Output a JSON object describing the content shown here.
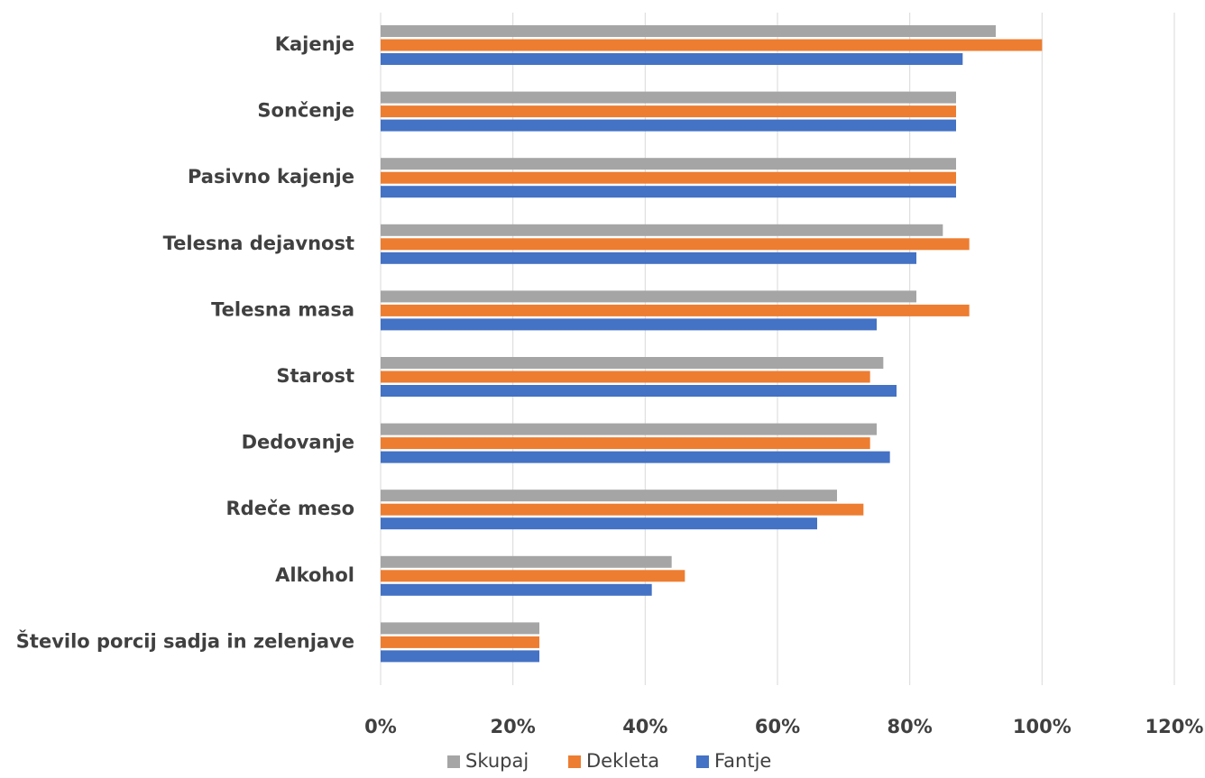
{
  "chart_data": {
    "type": "bar",
    "orientation": "horizontal",
    "categories": [
      "Kajenje",
      "Sončenje",
      "Pasivno kajenje",
      "Telesna dejavnost",
      "Telesna masa",
      "Starost",
      "Dedovanje",
      "Rdeče meso",
      "Alkohol",
      "Število porcij sadja in zelenjave"
    ],
    "series": [
      {
        "name": "Skupaj",
        "color": "#a5a5a5",
        "values": [
          93,
          87,
          87,
          85,
          81,
          76,
          75,
          69,
          44,
          24
        ]
      },
      {
        "name": "Dekleta",
        "color": "#ed7d31",
        "values": [
          100,
          87,
          87,
          89,
          89,
          74,
          74,
          73,
          46,
          24
        ]
      },
      {
        "name": "Fantje",
        "color": "#4472c4",
        "values": [
          88,
          87,
          87,
          81,
          75,
          78,
          77,
          66,
          41,
          24
        ]
      }
    ],
    "x_ticks": [
      "0%",
      "20%",
      "40%",
      "60%",
      "80%",
      "100%",
      "120%"
    ],
    "xlim": [
      0,
      120
    ],
    "grid": true,
    "legend_position": "bottom"
  }
}
